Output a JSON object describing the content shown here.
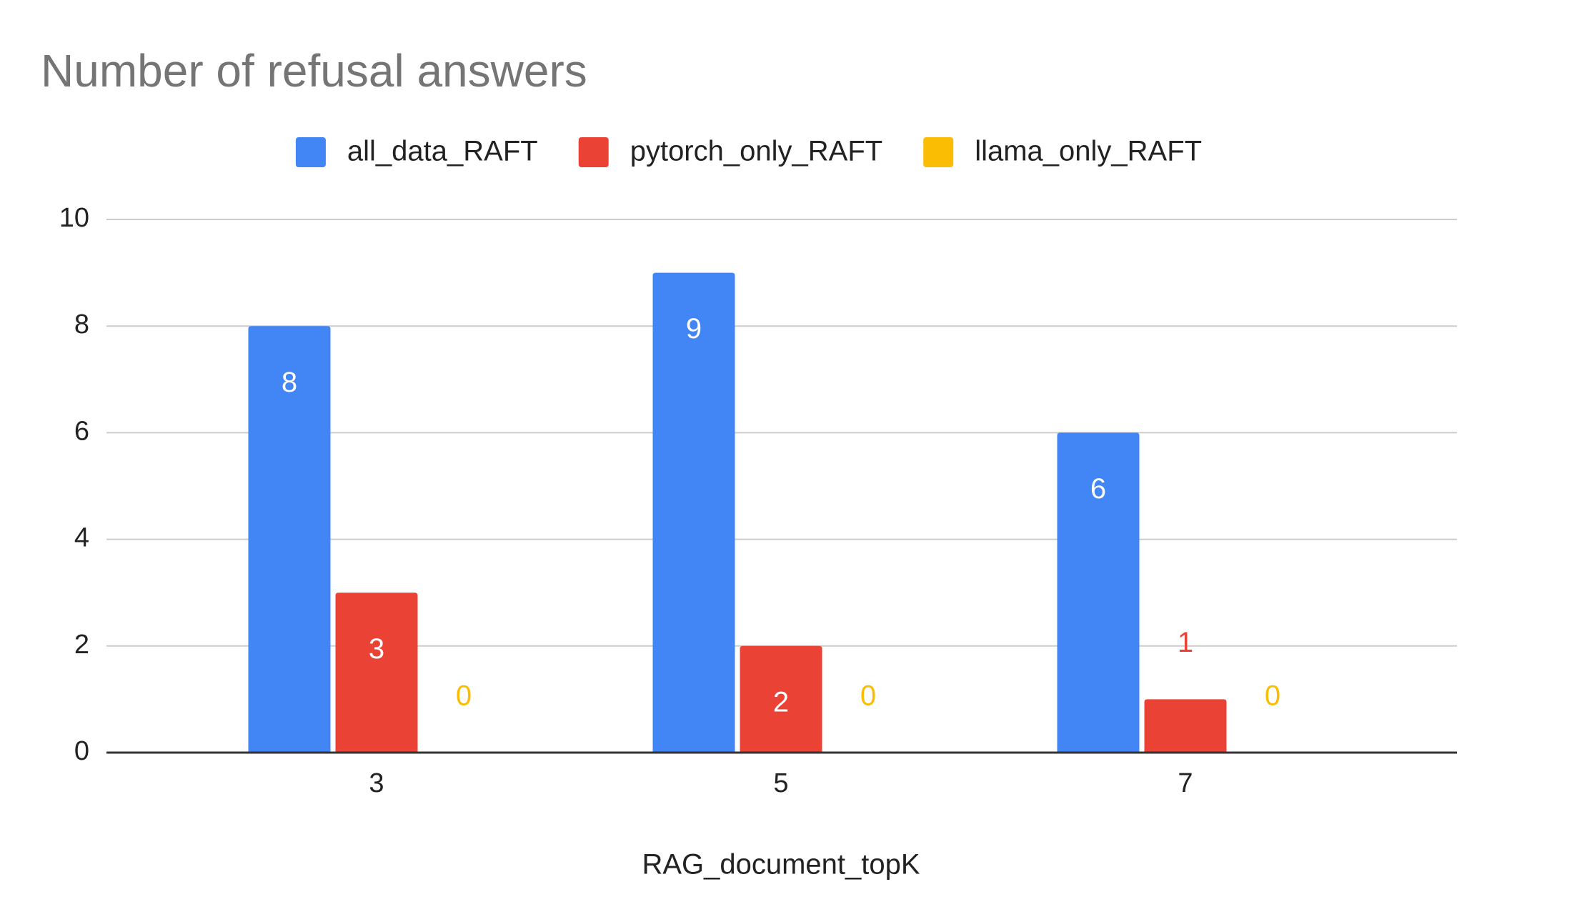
{
  "chart_data": {
    "type": "bar",
    "title": "Number of refusal answers",
    "x_label": "RAG_document_topK",
    "categories": [
      "3",
      "5",
      "7"
    ],
    "series": [
      {
        "name": "all_data_RAFT",
        "color": "#4285f4",
        "values": [
          8,
          9,
          6
        ]
      },
      {
        "name": "pytorch_only_RAFT",
        "color": "#ea4335",
        "values": [
          3,
          2,
          1
        ]
      },
      {
        "name": "llama_only_RAFT",
        "color": "#fbbc04",
        "values": [
          0,
          0,
          0
        ]
      }
    ],
    "ylim": [
      0,
      10
    ],
    "yticks": [
      0,
      2,
      4,
      6,
      8,
      10
    ],
    "grid": true,
    "legend": "top"
  }
}
